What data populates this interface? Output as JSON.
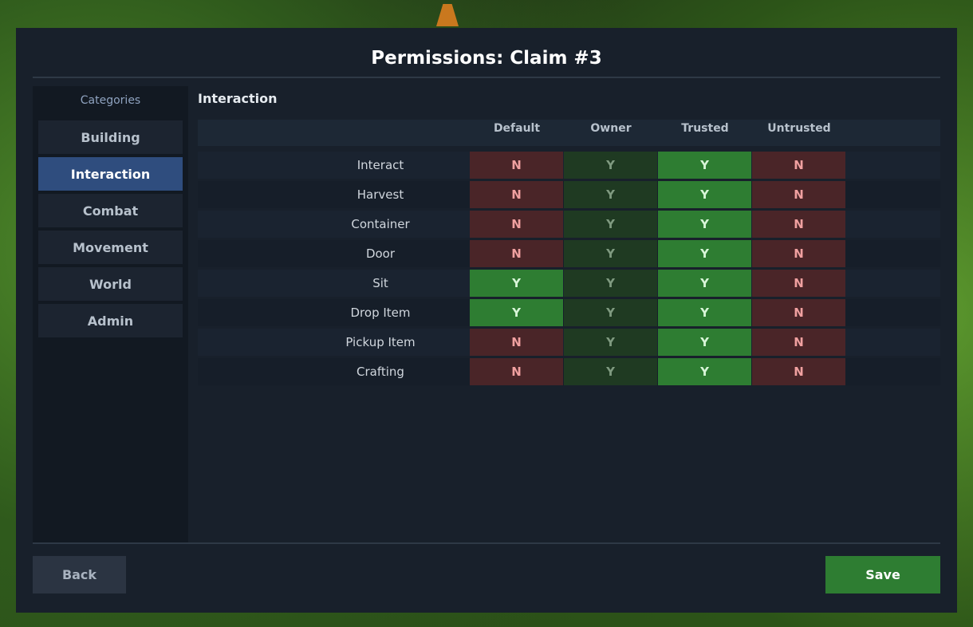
{
  "title": "Permissions: Claim #3",
  "sidebar": {
    "heading": "Categories",
    "items": [
      "Building",
      "Interaction",
      "Combat",
      "Movement",
      "World",
      "Admin"
    ],
    "active_index": 1
  },
  "section": {
    "title": "Interaction",
    "columns": [
      "Default",
      "Owner",
      "Trusted",
      "Untrusted"
    ],
    "rows": [
      {
        "label": "Interact",
        "cells": [
          "N",
          "Y",
          "Y",
          "N"
        ]
      },
      {
        "label": "Harvest",
        "cells": [
          "N",
          "Y",
          "Y",
          "N"
        ]
      },
      {
        "label": "Container",
        "cells": [
          "N",
          "Y",
          "Y",
          "N"
        ]
      },
      {
        "label": "Door",
        "cells": [
          "N",
          "Y",
          "Y",
          "N"
        ]
      },
      {
        "label": "Sit",
        "cells": [
          "Y",
          "Y",
          "Y",
          "N"
        ]
      },
      {
        "label": "Drop Item",
        "cells": [
          "Y",
          "Y",
          "Y",
          "N"
        ]
      },
      {
        "label": "Pickup Item",
        "cells": [
          "N",
          "Y",
          "Y",
          "N"
        ]
      },
      {
        "label": "Crafting",
        "cells": [
          "N",
          "Y",
          "Y",
          "N"
        ]
      }
    ]
  },
  "buttons": {
    "back": "Back",
    "save": "Save"
  }
}
